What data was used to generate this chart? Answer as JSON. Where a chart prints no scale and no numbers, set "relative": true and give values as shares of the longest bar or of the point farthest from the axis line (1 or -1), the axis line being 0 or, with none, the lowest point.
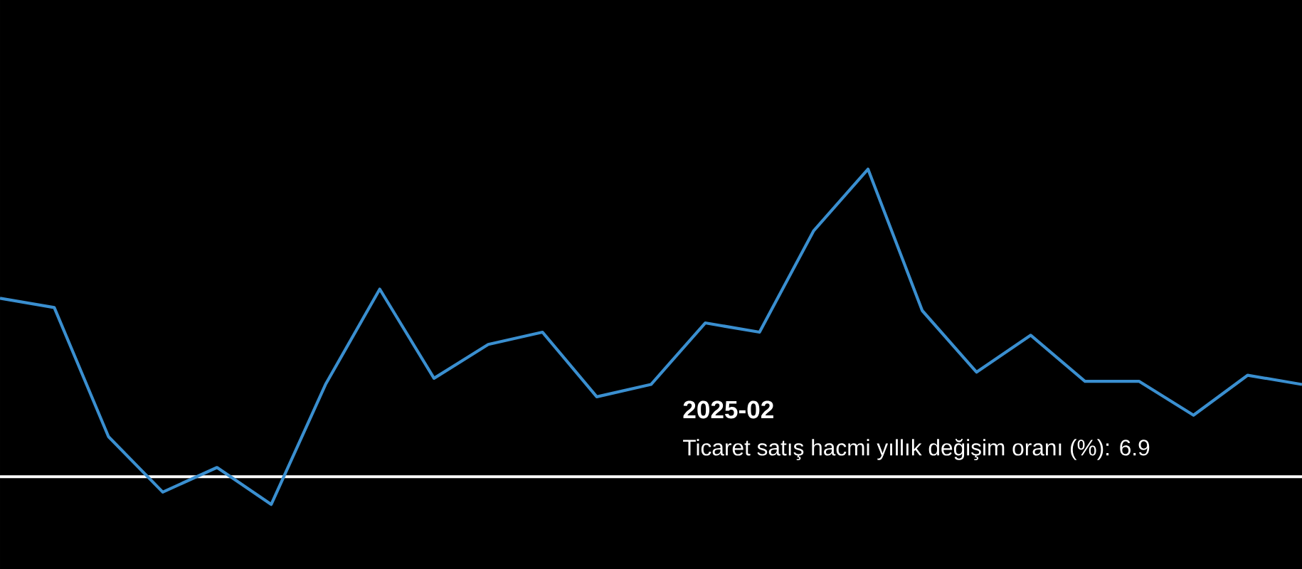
{
  "chart_data": {
    "type": "line",
    "relative": true,
    "categories": [
      null,
      null,
      null,
      null,
      null,
      null,
      null,
      null,
      null,
      null,
      null,
      null,
      null,
      null,
      null,
      null,
      null,
      null,
      null,
      null,
      null,
      null,
      null,
      null,
      null
    ],
    "series": [
      {
        "color": "#3a8fd0",
        "values": [
          0.58,
          0.55,
          0.13,
          -0.05,
          0.03,
          -0.09,
          0.3,
          0.61,
          0.32,
          0.43,
          0.47,
          0.26,
          0.3,
          0.5,
          0.47,
          0.8,
          1.0,
          0.54,
          0.34,
          0.46,
          0.31,
          0.31,
          0.2,
          0.33,
          0.3
        ]
      }
    ],
    "annotations": [
      "2025-02",
      "Ticaret satış hacmi yıllık değişim oranı (%): 6.9"
    ],
    "marker": "none"
  }
}
